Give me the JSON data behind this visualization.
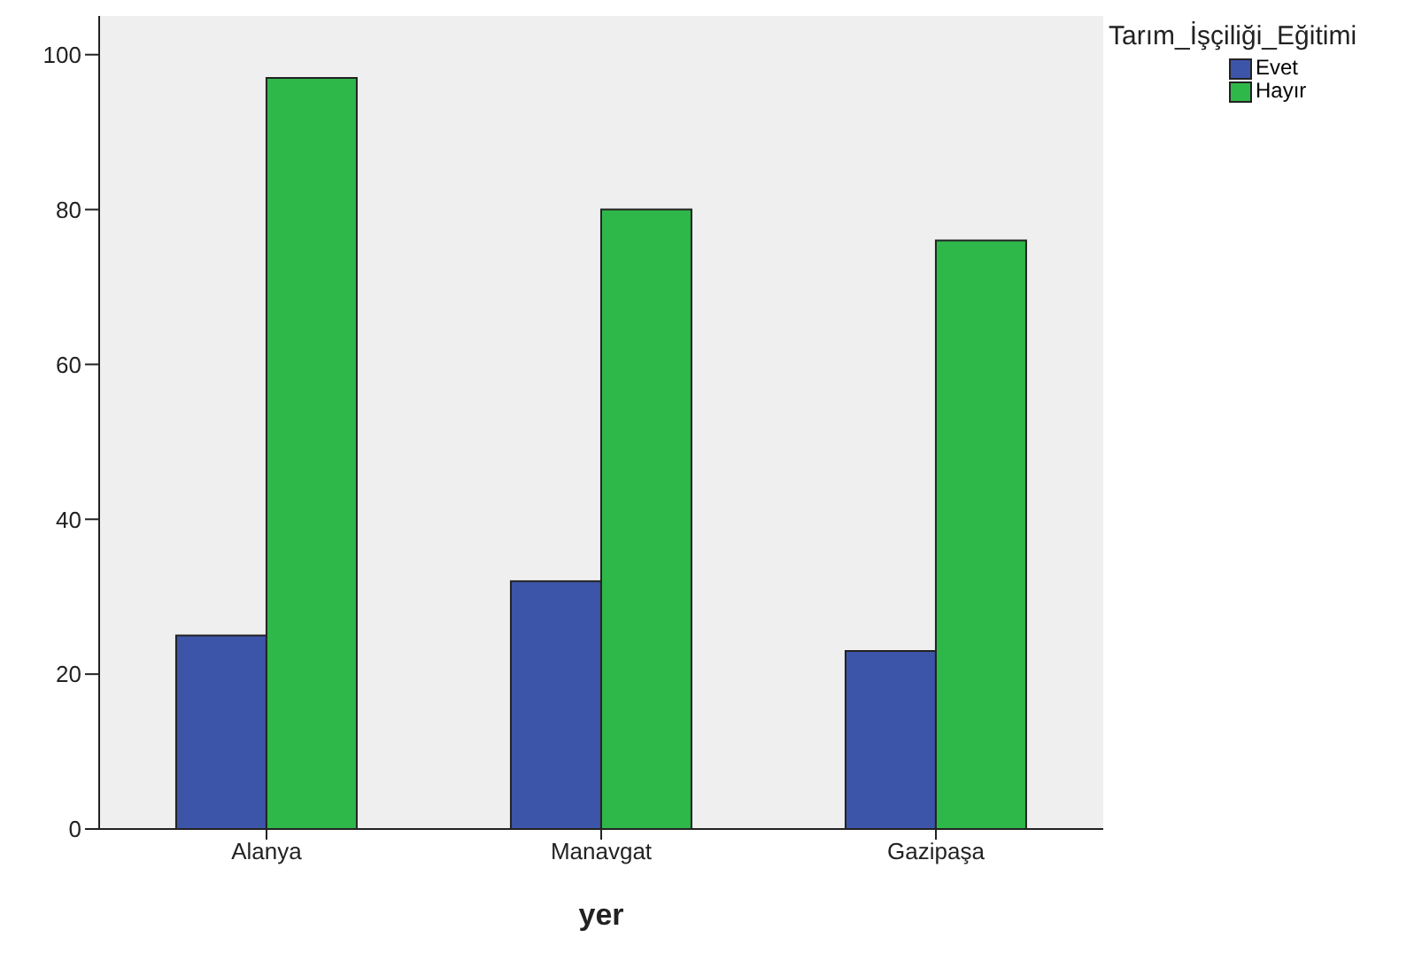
{
  "chart_data": {
    "type": "bar",
    "xlabel": "yer",
    "legend_title": "Tarım_İşçiliği_Eğitimi",
    "categories": [
      "Alanya",
      "Manavgat",
      "Gazipaşa"
    ],
    "series": [
      {
        "name": "Evet",
        "color": "#3d55a8",
        "values": [
          25,
          32,
          23
        ]
      },
      {
        "name": "Hayır",
        "color": "#2fb84a",
        "values": [
          97,
          80,
          76
        ]
      }
    ],
    "ylim": [
      0,
      105
    ],
    "yticks": [
      0,
      20,
      40,
      60,
      80,
      100
    ],
    "grid": false,
    "legend": "top right"
  }
}
